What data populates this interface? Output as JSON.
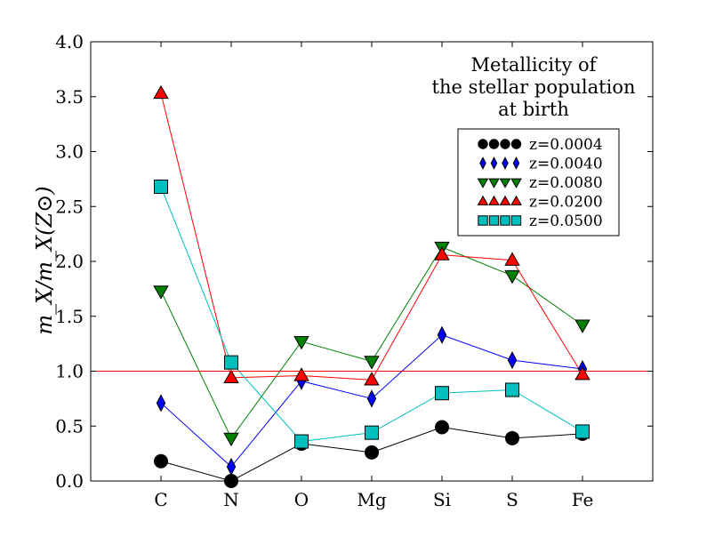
{
  "chart_data": {
    "type": "line",
    "title": "",
    "xlabel": "",
    "ylabel": "m_X/m_X(Z⊙)",
    "ylim": [
      0.0,
      4.0
    ],
    "yticks": [
      "0.0",
      "0.5",
      "1.0",
      "1.5",
      "2.0",
      "2.5",
      "3.0",
      "3.5",
      "4.0"
    ],
    "categories": [
      "C",
      "N",
      "O",
      "Mg",
      "Si",
      "S",
      "Fe"
    ],
    "reference_line": {
      "y": 1.0,
      "color": "#ff0000"
    },
    "annotation": [
      "Metallicity of",
      "the stellar population",
      "at birth"
    ],
    "legend_position": "upper-right",
    "series": [
      {
        "name": "z=0.0004",
        "marker": "circle",
        "color": "#000000",
        "line_color": "#000000",
        "values": [
          0.18,
          0.0,
          0.34,
          0.26,
          0.49,
          0.39,
          0.43
        ]
      },
      {
        "name": "z=0.0040",
        "marker": "diamond",
        "color": "#0000ff",
        "line_color": "#0000ff",
        "values": [
          0.71,
          0.13,
          0.91,
          0.75,
          1.33,
          1.1,
          1.02
        ]
      },
      {
        "name": "z=0.0080",
        "marker": "triangle-down",
        "color": "#008000",
        "line_color": "#008000",
        "values": [
          1.73,
          0.39,
          1.27,
          1.09,
          2.13,
          1.87,
          1.42
        ]
      },
      {
        "name": "z=0.0200",
        "marker": "triangle-up",
        "color": "#ff0000",
        "line_color": "#ff0000",
        "values": [
          3.53,
          0.94,
          0.96,
          0.92,
          2.06,
          2.01,
          0.97
        ]
      },
      {
        "name": "z=0.0500",
        "marker": "square",
        "color": "#00bfbf",
        "line_color": "#00bfbf",
        "values": [
          2.68,
          1.08,
          0.36,
          0.44,
          0.8,
          0.83,
          0.45
        ]
      }
    ]
  }
}
